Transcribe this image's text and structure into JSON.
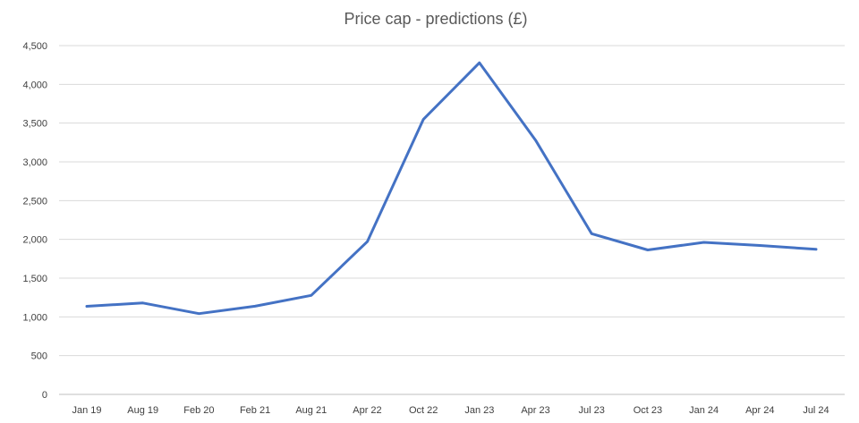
{
  "chart_data": {
    "type": "line",
    "title": "Price cap - predictions (£)",
    "xlabel": "",
    "ylabel": "",
    "categories": [
      "Jan 19",
      "Aug 19",
      "Feb 20",
      "Feb 21",
      "Aug 21",
      "Apr 22",
      "Oct 22",
      "Jan 23",
      "Apr 23",
      "Jul 23",
      "Oct 23",
      "Jan 24",
      "Apr 24",
      "Jul 24"
    ],
    "series": [
      {
        "values": [
          1137,
          1179,
          1042,
          1138,
          1277,
          1971,
          3549,
          4279,
          3280,
          2074,
          1863,
          1961,
          1921,
          1872
        ],
        "color": "#4472c4"
      }
    ],
    "ylim": [
      0,
      4500
    ],
    "yticks": [
      0,
      500,
      1000,
      1500,
      2000,
      2500,
      3000,
      3500,
      4000,
      4500
    ],
    "ytick_labels": [
      "0",
      "500",
      "1,000",
      "1,500",
      "2,000",
      "2,500",
      "3,000",
      "3,500",
      "4,000",
      "4,500"
    ],
    "grid": true,
    "legend": "none"
  }
}
